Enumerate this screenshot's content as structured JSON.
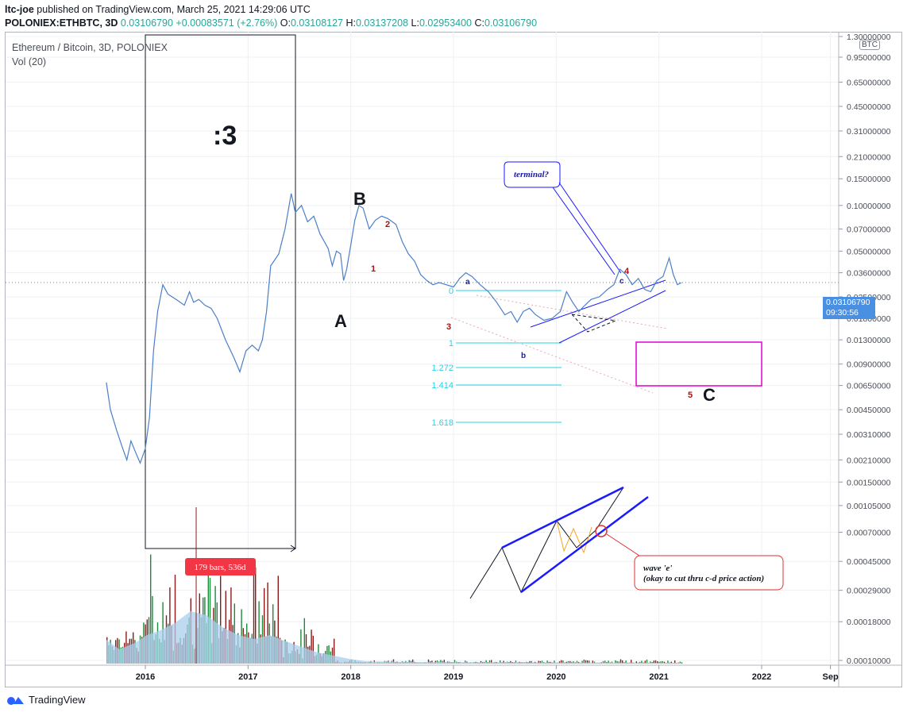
{
  "header": {
    "publisher": "ltc-joe",
    "published_text": "published on TradingView.com, March 25, 2021 14:29:06 UTC",
    "symbol": "POLONIEX:ETHBTC, 3D",
    "last": "0.03106790",
    "change": "+0.00083571 (+2.76%)",
    "o_label": "O:",
    "o": "0.03108127",
    "h_label": "H:",
    "h": "0.03137208",
    "l_label": "L:",
    "l": "0.02953400",
    "c_label": "C:",
    "c": "0.03106790"
  },
  "legend": {
    "main": "Ethereum / Bitcoin, 3D, POLONIEX",
    "vol": "Vol (20)"
  },
  "price_tag": {
    "value": "0.03106790",
    "countdown": "09:30:56"
  },
  "axis_unit": "BTC",
  "footer": {
    "brand": "TradingView"
  },
  "colors": {
    "price_line": "#4a7fc9",
    "volume_up": "#1b8a3a",
    "volume_down": "#8b1a1a",
    "volume_ma_fill": "#a9cfee",
    "fib": "#27d3e6",
    "wave_red": "#a31515",
    "channel_blue": "#1a1aff",
    "target_box": "#e000d0",
    "orange": "#f5a623",
    "callout_red": "#e03030"
  },
  "chart_data": {
    "type": "line",
    "title": "Ethereum / Bitcoin, 3D, POLONIEX",
    "scale": "log",
    "x_ticks": [
      "2016",
      "2017",
      "2018",
      "2019",
      "2020",
      "2021",
      "2022",
      "Sep"
    ],
    "y_ticks": [
      "1.30000000",
      "0.95000000",
      "0.65000000",
      "0.45000000",
      "0.31000000",
      "0.21000000",
      "0.15000000",
      "0.10000000",
      "0.07000000",
      "0.05000000",
      "0.03600000",
      "0.02500000",
      "0.01800000",
      "0.01300000",
      "0.00900000",
      "0.00650000",
      "0.00450000",
      "0.00310000",
      "0.00210000",
      "0.00150000",
      "0.00105000",
      "0.00070000",
      "0.00045000",
      "0.00029000",
      "0.00018000",
      "0.00010000"
    ],
    "ylim": [
      0.0001,
      1.3
    ],
    "series": [
      {
        "x": [
          2015.62,
          2015.66,
          2015.72,
          2015.78,
          2015.82,
          2015.86,
          2015.9,
          2015.95,
          2016.0,
          2016.04,
          2016.08,
          2016.12,
          2016.17,
          2016.22,
          2016.3,
          2016.38,
          2016.43,
          2016.47,
          2016.52,
          2016.58,
          2016.64,
          2016.7,
          2016.78,
          2016.86,
          2016.92,
          2016.98,
          2017.04,
          2017.1,
          2017.14,
          2017.18,
          2017.22,
          2017.3,
          2017.36,
          2017.42,
          2017.46,
          2017.52,
          2017.58,
          2017.64,
          2017.7,
          2017.78,
          2017.82,
          2017.86,
          2017.9,
          2017.93,
          2017.96,
          2018.0,
          2018.04,
          2018.08,
          2018.12,
          2018.18,
          2018.24,
          2018.3,
          2018.36,
          2018.44,
          2018.5,
          2018.56,
          2018.62,
          2018.68,
          2018.74,
          2018.8,
          2018.86,
          2018.93,
          2019.0,
          2019.06,
          2019.12,
          2019.18,
          2019.26,
          2019.34,
          2019.42,
          2019.5,
          2019.56,
          2019.62,
          2019.68,
          2019.74,
          2019.8,
          2019.88,
          2019.96,
          2020.04,
          2020.1,
          2020.16,
          2020.22,
          2020.28,
          2020.34,
          2020.42,
          2020.5,
          2020.56,
          2020.62,
          2020.68,
          2020.74,
          2020.8,
          2020.86,
          2020.92,
          2020.98,
          2021.04,
          2021.1,
          2021.14,
          2021.18,
          2021.22
        ],
        "y": [
          0.0068,
          0.0045,
          0.0033,
          0.0025,
          0.0021,
          0.0028,
          0.0024,
          0.002,
          0.0025,
          0.004,
          0.011,
          0.02,
          0.03,
          0.026,
          0.024,
          0.022,
          0.027,
          0.023,
          0.024,
          0.022,
          0.021,
          0.018,
          0.013,
          0.01,
          0.008,
          0.011,
          0.012,
          0.011,
          0.013,
          0.02,
          0.04,
          0.048,
          0.07,
          0.12,
          0.09,
          0.1,
          0.078,
          0.085,
          0.065,
          0.052,
          0.04,
          0.05,
          0.048,
          0.032,
          0.038,
          0.055,
          0.08,
          0.1,
          0.096,
          0.07,
          0.08,
          0.085,
          0.082,
          0.075,
          0.058,
          0.048,
          0.043,
          0.035,
          0.032,
          0.03,
          0.031,
          0.03,
          0.029,
          0.033,
          0.036,
          0.034,
          0.03,
          0.027,
          0.023,
          0.019,
          0.02,
          0.017,
          0.02,
          0.021,
          0.019,
          0.0175,
          0.018,
          0.02,
          0.027,
          0.023,
          0.02,
          0.022,
          0.024,
          0.025,
          0.028,
          0.03,
          0.038,
          0.035,
          0.03,
          0.033,
          0.028,
          0.027,
          0.032,
          0.034,
          0.045,
          0.035,
          0.03,
          0.031
        ]
      }
    ],
    "annotations": [
      {
        "text": ":3"
      },
      {
        "text": "A"
      },
      {
        "text": "B"
      },
      {
        "text": "C"
      },
      {
        "text": "1"
      },
      {
        "text": "2"
      },
      {
        "text": "3"
      },
      {
        "text": "4"
      },
      {
        "text": "5"
      },
      {
        "text": "a"
      },
      {
        "text": "b"
      },
      {
        "text": "c"
      },
      {
        "text": "0"
      },
      {
        "text": "1"
      },
      {
        "text": "1.272"
      },
      {
        "text": "1.414"
      },
      {
        "text": "1.618"
      },
      {
        "text": "terminal?"
      },
      {
        "text": "179 bars, 536d"
      },
      {
        "text": "wave 'e'"
      },
      {
        "text": "(okay to cut thru c-d price action)"
      }
    ]
  }
}
